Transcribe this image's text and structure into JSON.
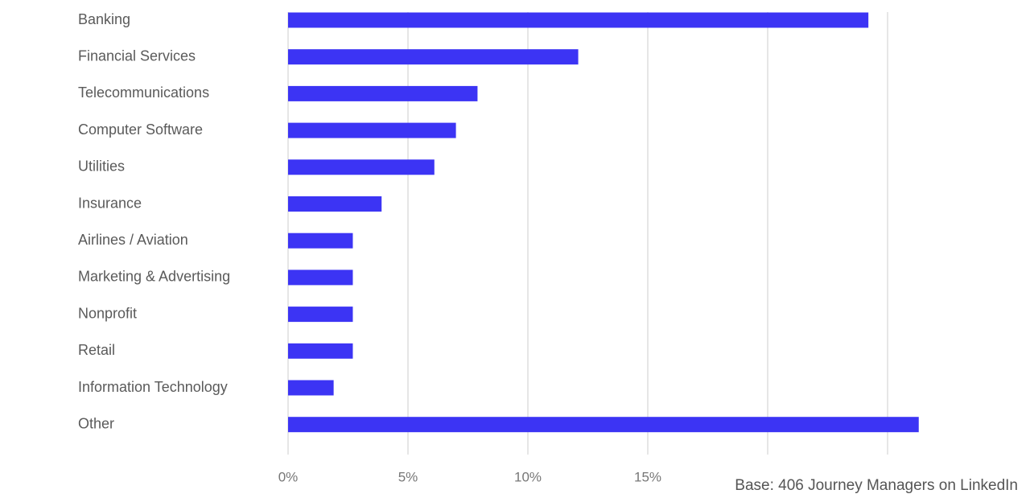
{
  "chart_data": {
    "type": "hbar",
    "categories": [
      "Banking",
      "Financial Services",
      "Telecommunications",
      "Computer Software",
      "Utilities",
      "Insurance",
      "Airlines / Aviation",
      "Marketing & Advertising",
      "Nonprofit",
      "Retail",
      "Information Technology",
      "Other"
    ],
    "values": [
      24.2,
      12.1,
      7.9,
      7.0,
      6.1,
      3.9,
      2.7,
      2.7,
      2.7,
      2.7,
      1.9,
      26.3
    ],
    "color": "#3c34f4",
    "xlim": [
      0,
      27
    ],
    "xticks": [
      {
        "value": 0,
        "label": "0%"
      },
      {
        "value": 5,
        "label": "5%"
      },
      {
        "value": 10,
        "label": "10%"
      },
      {
        "value": 15,
        "label": "15%"
      },
      {
        "value": 20,
        "label": null
      },
      {
        "value": 25,
        "label": null
      }
    ],
    "grid": true,
    "note": "Base: 406 Journey Managers on LinkedIn"
  }
}
